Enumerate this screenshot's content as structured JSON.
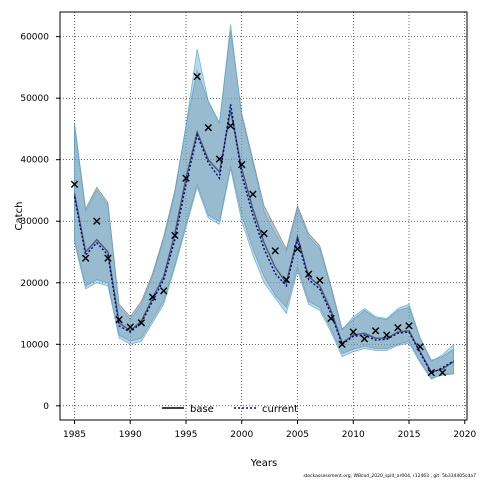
{
  "chart_data": {
    "type": "line",
    "xlabel": "Years",
    "ylabel": "Catch",
    "xlim": [
      1983.7,
      2020.2
    ],
    "ylim": [
      -2300,
      64000
    ],
    "x_ticks": [
      1985,
      1990,
      1995,
      2000,
      2005,
      2010,
      2015,
      2020
    ],
    "y_ticks": [
      0,
      10000,
      20000,
      30000,
      40000,
      50000,
      60000
    ],
    "x_tick_labels": [
      "1985",
      "1990",
      "1995",
      "2000",
      "2005",
      "2010",
      "2015",
      "2020"
    ],
    "y_tick_labels": [
      "0",
      "10000",
      "20000",
      "30000",
      "40000",
      "50000",
      "60000"
    ],
    "grid": true,
    "legend_position": "bottom-center",
    "footnote": "stockassessment.org,  WBcod_2020_split_ar004,  r12463 ,  git: 5b334405cda7",
    "series": [
      {
        "name": "base",
        "color": "#8c8c8c",
        "line_style": "solid",
        "x": [
          1985,
          1986,
          1987,
          1988,
          1989,
          1990,
          1991,
          1992,
          1993,
          1994,
          1995,
          1996,
          1997,
          1998,
          1999,
          2000,
          2001,
          2002,
          2003,
          2004,
          2005,
          2006,
          2007,
          2008,
          2009,
          2010,
          2011,
          2012,
          2013,
          2014,
          2015,
          2016,
          2017,
          2018,
          2019
        ],
        "values": [
          34500,
          25000,
          27000,
          25000,
          13500,
          12200,
          13800,
          17500,
          21000,
          28000,
          37000,
          44500,
          40000,
          38000,
          48000,
          38500,
          32000,
          26500,
          22500,
          20000,
          27500,
          21000,
          19500,
          15500,
          10200,
          11500,
          11800,
          11000,
          11000,
          12000,
          12200,
          8800,
          5500,
          6000,
          7200
        ],
        "lower": [
          27000,
          19500,
          20500,
          20000,
          11500,
          10500,
          11000,
          14000,
          17000,
          23000,
          29500,
          36000,
          31000,
          30000,
          39000,
          31000,
          25500,
          21000,
          18000,
          16000,
          22500,
          17000,
          16000,
          12500,
          8500,
          9200,
          9700,
          9300,
          9300,
          10000,
          10500,
          7300,
          4500,
          5000,
          5200
        ],
        "upper": [
          46000,
          32000,
          35500,
          33000,
          16500,
          14500,
          17000,
          21500,
          27500,
          35000,
          45500,
          54500,
          49500,
          46000,
          61000,
          47500,
          40000,
          32500,
          29000,
          25500,
          32500,
          28000,
          26000,
          19500,
          12500,
          14000,
          15500,
          14300,
          14000,
          15500,
          16000,
          11000,
          7400,
          8000,
          9200
        ]
      },
      {
        "name": "current",
        "color": "#00008b",
        "line_style": "dotted",
        "x": [
          1985,
          1986,
          1987,
          1988,
          1989,
          1990,
          1991,
          1992,
          1993,
          1994,
          1995,
          1996,
          1997,
          1998,
          1999,
          2000,
          2001,
          2002,
          2003,
          2004,
          2005,
          2006,
          2007,
          2008,
          2009,
          2010,
          2011,
          2012,
          2013,
          2014,
          2015,
          2016,
          2017,
          2018,
          2019
        ],
        "values": [
          34000,
          24500,
          26500,
          24500,
          13000,
          12000,
          13500,
          17000,
          20500,
          27000,
          36000,
          44000,
          39500,
          37000,
          49000,
          37500,
          31000,
          25500,
          21500,
          19500,
          27000,
          20500,
          19000,
          15000,
          10000,
          11300,
          11500,
          10700,
          10800,
          11800,
          12000,
          8600,
          5300,
          6200,
          7300
        ],
        "lower": [
          26500,
          19000,
          20000,
          19500,
          11000,
          10000,
          10500,
          13500,
          16500,
          22500,
          29000,
          35500,
          30500,
          29500,
          38500,
          30000,
          24500,
          20000,
          17500,
          15000,
          22000,
          16500,
          15500,
          12000,
          8000,
          8800,
          9300,
          9000,
          9000,
          9800,
          10200,
          7000,
          4300,
          5200,
          5200
        ],
        "upper": [
          45500,
          31500,
          35000,
          32500,
          16000,
          14000,
          16500,
          21000,
          27000,
          34500,
          45500,
          58000,
          49500,
          46000,
          62000,
          47000,
          39500,
          31500,
          28000,
          25000,
          32000,
          27500,
          25500,
          19000,
          12300,
          14500,
          15800,
          14500,
          14200,
          15800,
          16500,
          11000,
          7200,
          8300,
          10000
        ]
      },
      {
        "name": "observed",
        "marker": "x",
        "x": [
          1985,
          1986,
          1987,
          1988,
          1989,
          1990,
          1991,
          1992,
          1993,
          1994,
          1995,
          1996,
          1997,
          1998,
          1999,
          2000,
          2001,
          2002,
          2003,
          2004,
          2005,
          2006,
          2007,
          2008,
          2009,
          2010,
          2011,
          2012,
          2013,
          2014,
          2015,
          2016,
          2017,
          2018
        ],
        "values": [
          36000,
          24000,
          30000,
          24000,
          14000,
          12800,
          13500,
          17700,
          18700,
          27700,
          37000,
          53500,
          45200,
          40100,
          45500,
          39200,
          34400,
          28000,
          25200,
          20500,
          25500,
          21400,
          20400,
          14200,
          10000,
          12000,
          10900,
          12200,
          11500,
          12700,
          13000,
          9600,
          5400,
          5400
        ]
      }
    ]
  }
}
